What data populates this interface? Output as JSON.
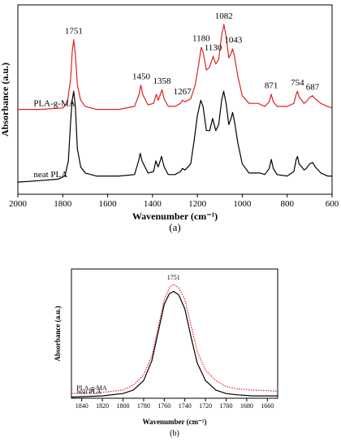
{
  "chart_data": [
    {
      "type": "line",
      "panel": "a",
      "panel_label": "(a)",
      "xlabel": "Wavenumber (cm⁻¹)",
      "ylabel": "Absorbance (a.u.)",
      "xlim": [
        2000,
        600
      ],
      "x_reversed": true,
      "x_ticks": [
        2000,
        1800,
        1600,
        1400,
        1200,
        1000,
        800,
        600
      ],
      "y_ticks": [],
      "grid": false,
      "series": [
        {
          "name": "PLA-g-MA",
          "color": "#e02020",
          "style": "solid",
          "label_x": 1930,
          "points": [
            [
              2000,
              0.56
            ],
            [
              1900,
              0.56
            ],
            [
              1800,
              0.57
            ],
            [
              1780,
              0.6
            ],
            [
              1765,
              0.76
            ],
            [
              1758,
              0.94
            ],
            [
              1751,
              1.02
            ],
            [
              1744,
              0.92
            ],
            [
              1735,
              0.72
            ],
            [
              1720,
              0.62
            ],
            [
              1700,
              0.58
            ],
            [
              1650,
              0.56
            ],
            [
              1550,
              0.56
            ],
            [
              1480,
              0.58
            ],
            [
              1460,
              0.66
            ],
            [
              1452,
              0.72
            ],
            [
              1444,
              0.66
            ],
            [
              1420,
              0.59
            ],
            [
              1395,
              0.6
            ],
            [
              1383,
              0.66
            ],
            [
              1375,
              0.62
            ],
            [
              1365,
              0.66
            ],
            [
              1358,
              0.69
            ],
            [
              1348,
              0.63
            ],
            [
              1330,
              0.58
            ],
            [
              1300,
              0.58
            ],
            [
              1275,
              0.6
            ],
            [
              1267,
              0.62
            ],
            [
              1255,
              0.61
            ],
            [
              1230,
              0.63
            ],
            [
              1210,
              0.72
            ],
            [
              1195,
              0.85
            ],
            [
              1183,
              0.97
            ],
            [
              1175,
              0.94
            ],
            [
              1160,
              0.82
            ],
            [
              1145,
              0.84
            ],
            [
              1130,
              0.91
            ],
            [
              1118,
              0.86
            ],
            [
              1105,
              0.89
            ],
            [
              1092,
              1.05
            ],
            [
              1082,
              1.12
            ],
            [
              1072,
              1.04
            ],
            [
              1060,
              0.9
            ],
            [
              1050,
              0.93
            ],
            [
              1043,
              0.96
            ],
            [
              1035,
              0.91
            ],
            [
              1020,
              0.78
            ],
            [
              1000,
              0.65
            ],
            [
              970,
              0.6
            ],
            [
              950,
              0.6
            ],
            [
              930,
              0.6
            ],
            [
              900,
              0.58
            ],
            [
              880,
              0.61
            ],
            [
              871,
              0.66
            ],
            [
              862,
              0.61
            ],
            [
              845,
              0.58
            ],
            [
              800,
              0.58
            ],
            [
              770,
              0.6
            ],
            [
              760,
              0.66
            ],
            [
              754,
              0.68
            ],
            [
              747,
              0.64
            ],
            [
              735,
              0.62
            ],
            [
              725,
              0.6
            ],
            [
              715,
              0.61
            ],
            [
              700,
              0.64
            ],
            [
              687,
              0.65
            ],
            [
              675,
              0.63
            ],
            [
              650,
              0.6
            ],
            [
              620,
              0.58
            ],
            [
              600,
              0.57
            ]
          ]
        },
        {
          "name": "neat PLA",
          "color": "#000000",
          "style": "solid",
          "label_x": 1930,
          "points": [
            [
              2000,
              0.08
            ],
            [
              1900,
              0.09
            ],
            [
              1820,
              0.1
            ],
            [
              1790,
              0.12
            ],
            [
              1775,
              0.22
            ],
            [
              1765,
              0.48
            ],
            [
              1758,
              0.62
            ],
            [
              1751,
              0.68
            ],
            [
              1744,
              0.58
            ],
            [
              1735,
              0.3
            ],
            [
              1720,
              0.18
            ],
            [
              1700,
              0.14
            ],
            [
              1650,
              0.12
            ],
            [
              1550,
              0.12
            ],
            [
              1480,
              0.13
            ],
            [
              1462,
              0.22
            ],
            [
              1455,
              0.27
            ],
            [
              1447,
              0.22
            ],
            [
              1420,
              0.14
            ],
            [
              1395,
              0.15
            ],
            [
              1385,
              0.22
            ],
            [
              1375,
              0.18
            ],
            [
              1366,
              0.22
            ],
            [
              1360,
              0.25
            ],
            [
              1348,
              0.18
            ],
            [
              1330,
              0.13
            ],
            [
              1300,
              0.13
            ],
            [
              1275,
              0.15
            ],
            [
              1267,
              0.17
            ],
            [
              1255,
              0.16
            ],
            [
              1230,
              0.2
            ],
            [
              1215,
              0.35
            ],
            [
              1200,
              0.52
            ],
            [
              1185,
              0.62
            ],
            [
              1175,
              0.58
            ],
            [
              1160,
              0.42
            ],
            [
              1145,
              0.42
            ],
            [
              1132,
              0.5
            ],
            [
              1118,
              0.42
            ],
            [
              1105,
              0.46
            ],
            [
              1092,
              0.62
            ],
            [
              1083,
              0.68
            ],
            [
              1072,
              0.6
            ],
            [
              1060,
              0.46
            ],
            [
              1050,
              0.5
            ],
            [
              1043,
              0.54
            ],
            [
              1035,
              0.48
            ],
            [
              1020,
              0.34
            ],
            [
              1000,
              0.2
            ],
            [
              970,
              0.14
            ],
            [
              940,
              0.14
            ],
            [
              920,
              0.14
            ],
            [
              900,
              0.13
            ],
            [
              880,
              0.17
            ],
            [
              871,
              0.23
            ],
            [
              862,
              0.17
            ],
            [
              845,
              0.13
            ],
            [
              800,
              0.12
            ],
            [
              770,
              0.15
            ],
            [
              760,
              0.23
            ],
            [
              754,
              0.25
            ],
            [
              747,
              0.2
            ],
            [
              735,
              0.18
            ],
            [
              725,
              0.16
            ],
            [
              715,
              0.17
            ],
            [
              700,
              0.2
            ],
            [
              687,
              0.21
            ],
            [
              675,
              0.18
            ],
            [
              650,
              0.14
            ],
            [
              620,
              0.12
            ],
            [
              600,
              0.12
            ]
          ]
        }
      ],
      "annotations": [
        {
          "text": "1751",
          "x": 1751,
          "y": 1.06
        },
        {
          "text": "1450",
          "x": 1450,
          "y": 0.76
        },
        {
          "text": "1358",
          "x": 1358,
          "y": 0.73
        },
        {
          "text": "1267",
          "x": 1267,
          "y": 0.66
        },
        {
          "text": "1180",
          "x": 1183,
          "y": 1.01
        },
        {
          "text": "1130",
          "x": 1130,
          "y": 0.95
        },
        {
          "text": "1082",
          "x": 1082,
          "y": 1.16
        },
        {
          "text": "1043",
          "x": 1040,
          "y": 1.0
        },
        {
          "text": "871",
          "x": 871,
          "y": 0.7
        },
        {
          "text": "754",
          "x": 754,
          "y": 0.72
        },
        {
          "text": "687",
          "x": 687,
          "y": 0.69
        }
      ],
      "ylim": [
        0,
        1.25
      ]
    },
    {
      "type": "line",
      "panel": "b",
      "panel_label": "(b)",
      "xlabel": "Wavenumber (cm⁻¹)",
      "ylabel": "Absorbance (a.u.)",
      "xlim": [
        1850,
        1650
      ],
      "x_reversed": true,
      "x_ticks": [
        1840,
        1820,
        1800,
        1780,
        1760,
        1740,
        1720,
        1700,
        1680,
        1660
      ],
      "y_ticks": [],
      "grid": false,
      "series": [
        {
          "name": "PLA-g-MA",
          "color": "#e02020",
          "style": "dotted",
          "label_x": 1845,
          "points": [
            [
              1850,
              0.04
            ],
            [
              1820,
              0.05
            ],
            [
              1800,
              0.07
            ],
            [
              1790,
              0.11
            ],
            [
              1780,
              0.2
            ],
            [
              1772,
              0.36
            ],
            [
              1766,
              0.6
            ],
            [
              1760,
              0.84
            ],
            [
              1755,
              0.94
            ],
            [
              1751,
              0.97
            ],
            [
              1746,
              0.94
            ],
            [
              1740,
              0.84
            ],
            [
              1734,
              0.62
            ],
            [
              1728,
              0.4
            ],
            [
              1720,
              0.24
            ],
            [
              1710,
              0.15
            ],
            [
              1700,
              0.1
            ],
            [
              1690,
              0.08
            ],
            [
              1675,
              0.07
            ],
            [
              1650,
              0.06
            ]
          ]
        },
        {
          "name": "neat PLA",
          "color": "#000000",
          "style": "solid",
          "label_x": 1845,
          "points": [
            [
              1850,
              0.01
            ],
            [
              1820,
              0.02
            ],
            [
              1800,
              0.04
            ],
            [
              1790,
              0.07
            ],
            [
              1780,
              0.15
            ],
            [
              1772,
              0.32
            ],
            [
              1766,
              0.56
            ],
            [
              1760,
              0.8
            ],
            [
              1755,
              0.89
            ],
            [
              1751,
              0.91
            ],
            [
              1746,
              0.88
            ],
            [
              1740,
              0.76
            ],
            [
              1734,
              0.52
            ],
            [
              1728,
              0.3
            ],
            [
              1720,
              0.15
            ],
            [
              1710,
              0.07
            ],
            [
              1700,
              0.04
            ],
            [
              1690,
              0.03
            ],
            [
              1675,
              0.02
            ],
            [
              1650,
              0.02
            ]
          ]
        }
      ],
      "annotations": [
        {
          "text": "1751",
          "x": 1751,
          "y": 1.01
        }
      ],
      "ylim": [
        0,
        1.1
      ]
    }
  ]
}
